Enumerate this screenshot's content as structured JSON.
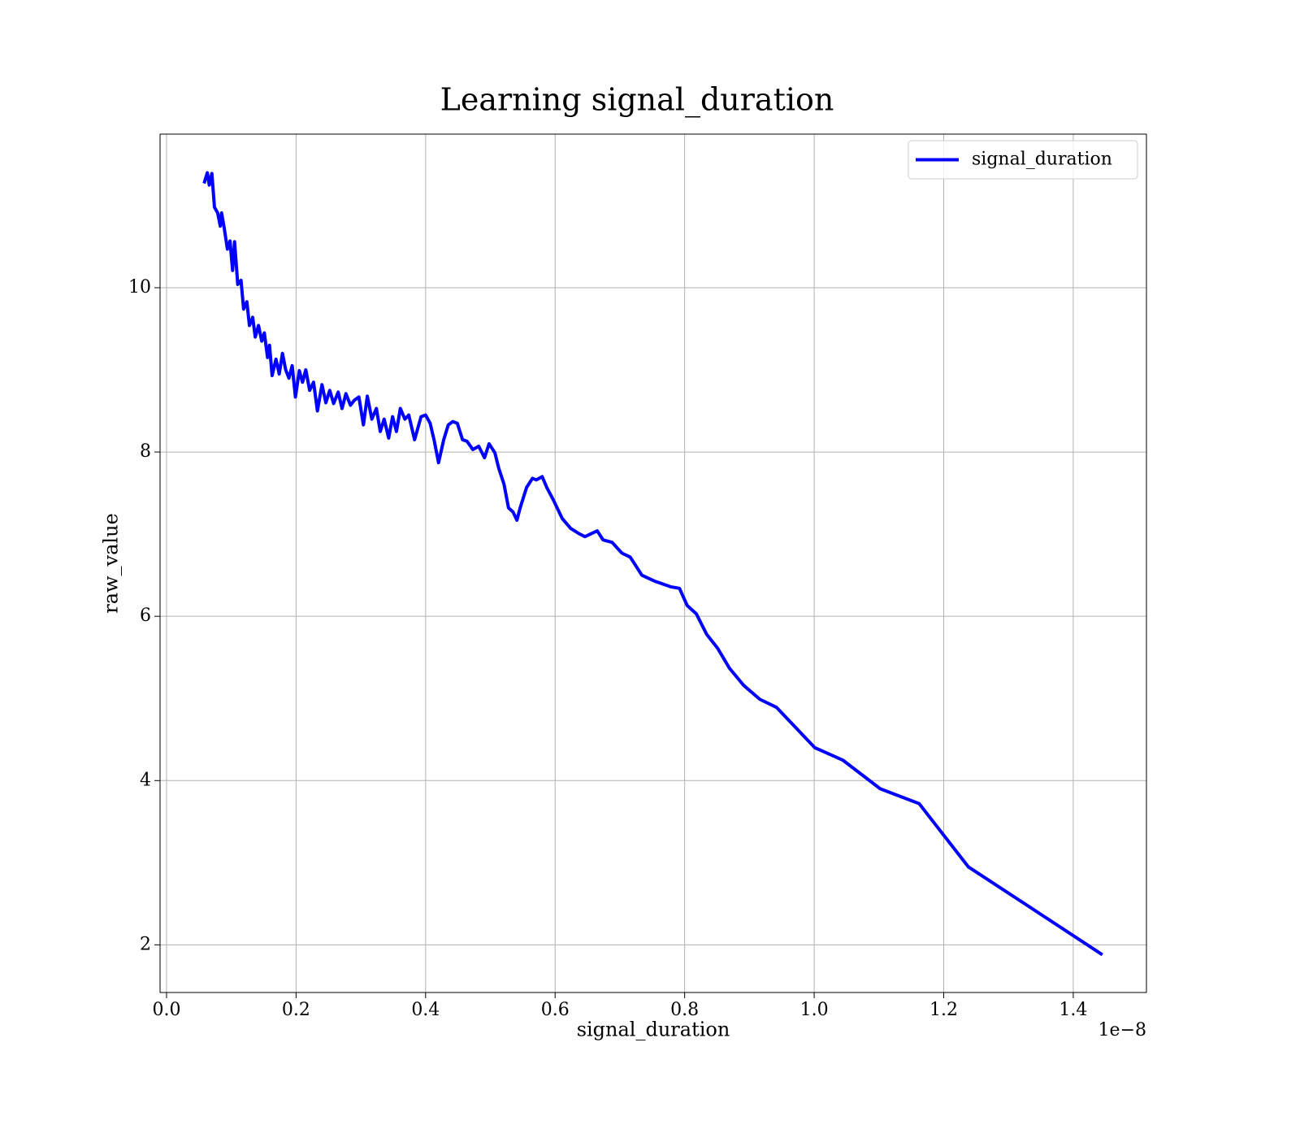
{
  "chart_data": {
    "type": "line",
    "title": "Learning signal_duration",
    "xlabel": "signal_duration",
    "ylabel": "raw_value",
    "x_offset_text": "1e−8",
    "xlim": [
      -0.01,
      1.513
    ],
    "ylim": [
      1.42,
      11.87
    ],
    "xticks": [
      {
        "value": 0,
        "label": "0.0"
      },
      0.2,
      0.4,
      0.6,
      0.8,
      {
        "value": 1,
        "label": "1.0"
      },
      1.2,
      1.4
    ],
    "yticks": [
      2,
      4,
      6,
      8,
      10
    ],
    "grid": true,
    "legend": "upper right",
    "x": [
      0.058,
      0.063,
      0.066,
      0.07,
      0.074,
      0.079,
      0.083,
      0.085,
      0.089,
      0.094,
      0.098,
      0.102,
      0.105,
      0.11,
      0.115,
      0.119,
      0.124,
      0.128,
      0.133,
      0.137,
      0.142,
      0.147,
      0.151,
      0.156,
      0.159,
      0.163,
      0.169,
      0.174,
      0.179,
      0.184,
      0.189,
      0.194,
      0.199,
      0.205,
      0.21,
      0.215,
      0.221,
      0.227,
      0.233,
      0.24,
      0.246,
      0.252,
      0.258,
      0.265,
      0.271,
      0.277,
      0.284,
      0.29,
      0.297,
      0.304,
      0.31,
      0.317,
      0.324,
      0.33,
      0.336,
      0.343,
      0.349,
      0.355,
      0.361,
      0.368,
      0.374,
      0.383,
      0.393,
      0.4,
      0.407,
      0.413,
      0.42,
      0.428,
      0.435,
      0.442,
      0.449,
      0.457,
      0.464,
      0.473,
      0.482,
      0.491,
      0.498,
      0.507,
      0.513,
      0.521,
      0.528,
      0.535,
      0.541,
      0.546,
      0.556,
      0.565,
      0.571,
      0.58,
      0.587,
      0.597,
      0.611,
      0.624,
      0.636,
      0.646,
      0.665,
      0.674,
      0.688,
      0.703,
      0.716,
      0.734,
      0.753,
      0.778,
      0.792,
      0.804,
      0.818,
      0.834,
      0.851,
      0.869,
      0.891,
      0.916,
      0.942,
      0.966,
      1.001,
      1.044,
      1.102,
      1.162,
      1.238,
      1.445
    ],
    "series": [
      {
        "name": "signal_duration",
        "color": "#0000ff",
        "values": [
          11.27,
          11.4,
          11.25,
          11.39,
          10.98,
          10.91,
          10.75,
          10.91,
          10.73,
          10.47,
          10.57,
          10.21,
          10.56,
          10.04,
          10.09,
          9.74,
          9.83,
          9.54,
          9.64,
          9.4,
          9.54,
          9.35,
          9.45,
          9.15,
          9.3,
          8.93,
          9.13,
          8.95,
          9.2,
          9.0,
          8.9,
          9.05,
          8.67,
          8.99,
          8.85,
          9.0,
          8.75,
          8.85,
          8.5,
          8.82,
          8.6,
          8.75,
          8.59,
          8.73,
          8.53,
          8.71,
          8.57,
          8.63,
          8.67,
          8.33,
          8.68,
          8.4,
          8.53,
          8.25,
          8.4,
          8.17,
          8.43,
          8.25,
          8.53,
          8.4,
          8.45,
          8.15,
          8.43,
          8.45,
          8.35,
          8.15,
          7.87,
          8.15,
          8.33,
          8.37,
          8.35,
          8.15,
          8.13,
          8.03,
          8.07,
          7.93,
          8.1,
          7.99,
          7.8,
          7.61,
          7.32,
          7.27,
          7.17,
          7.32,
          7.57,
          7.68,
          7.66,
          7.7,
          7.57,
          7.42,
          7.19,
          7.07,
          7.01,
          6.97,
          7.04,
          6.93,
          6.9,
          6.77,
          6.72,
          6.5,
          6.43,
          6.36,
          6.34,
          6.13,
          6.03,
          5.78,
          5.61,
          5.37,
          5.16,
          4.99,
          4.89,
          4.69,
          4.4,
          4.25,
          3.9,
          3.72,
          2.95,
          1.88
        ]
      }
    ]
  }
}
